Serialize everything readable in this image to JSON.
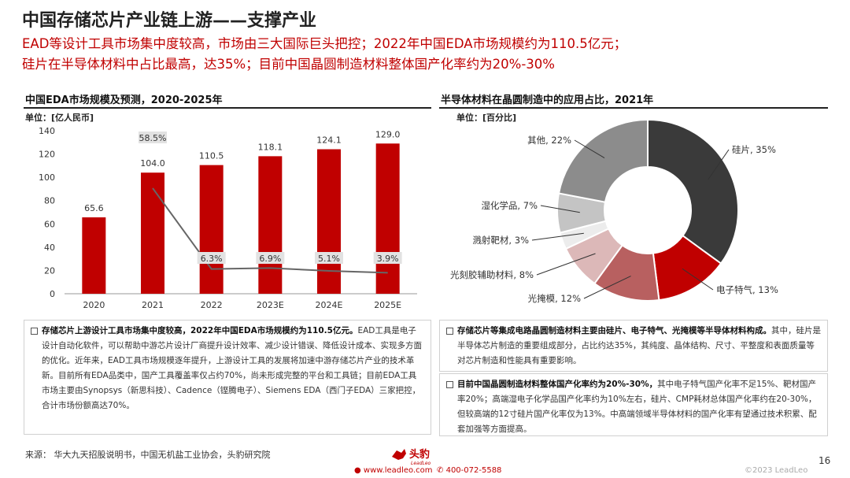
{
  "page": {
    "title": "中国存储芯片产业链上游——支撑产业",
    "subtitle_line1": "EAD等设计工具市场集中度较高，市场由三大国际巨头把控；2022年中国EDA市场规模约为110.5亿元；",
    "subtitle_line2": "硅片在半导体材料中占比最高，达35%；目前中国晶圆制造材料整体国产化率约为20%-30%",
    "page_number": "16",
    "source": "来源：  华大九天招股说明书，中国无机盐工业协会，头豹研究院",
    "footer_web": "www.leadleo.com",
    "footer_phone": "400-072-5588",
    "copyright": "©2023 LeadLeo",
    "logo_text": "头豹",
    "logo_sub": "LeadLeo",
    "accent_color": "#c00000"
  },
  "left_panel": {
    "header": "中国EDA市场规模及预测，2020-2025年",
    "unit": "单位：[亿人民币]",
    "box_bold": "存储芯片上游设计工具市场集中度较高，2022年中国EDA市场规模约为110.5亿元。",
    "box_text": "EAD工具是电子设计自动化软件，可以帮助中游芯片设计厂商提升设计效率、减少设计错误、降低设计成本、实现多方面的优化。近年来，EAD工具市场规模逐年提升，上游设计工具的发展将加速中游存储芯片产业的技术革新。目前所有EDA品类中，国产工具覆盖率仅占约70%，尚未形成完整的平台和工具链；目前EDA工具市场主要由Synopsys（新思科技）、Cadence（铿腾电子）、Siemens EDA（西门子EDA）三家把控，合计市场份额高达70%。"
  },
  "right_panel": {
    "header": "半导体材料在晶圆制造中的应用占比，2021年",
    "unit": "单位：[百分比]",
    "box1_bold": "存储芯片等集成电路晶圆制造材料主要由硅片、电子特气、光掩模等半导体材料构成。",
    "box1_text": "其中，硅片是半导体芯片制造的重要组成部分，占比约达35%，其纯度、晶体结构、尺寸、平整度和表面质量等对芯片制造和性能具有重要影响。",
    "box2_bold": "目前中国晶圆制造材料整体国产化率约为20%-30%，",
    "box2_text": "其中电子特气国产化率不足15%、靶材国产率20%；高端湿电子化学品国产化率约为10%左右，硅片、CMP耗材总体国产化率约在20-30%，但较高端的12寸硅片国产化率仅为13%。中高端领域半导体材料的国产化率有望通过技术积累、配套加强等方面提高。"
  },
  "chart_data": [
    {
      "type": "bar",
      "categories": [
        "2020",
        "2021",
        "2022",
        "2023E",
        "2024E",
        "2025E"
      ],
      "series": [
        {
          "values": [
            65.6,
            104.0,
            110.5,
            118.1,
            124.1,
            129.0
          ],
          "color": "#c00000"
        },
        {
          "values": [
            "",
            "58.5%",
            "6.3%",
            "6.9%",
            "5.1%",
            "3.9%"
          ],
          "color": "#666666"
        }
      ],
      "growth_values": [
        null,
        58.5,
        6.3,
        6.9,
        5.1,
        3.9
      ],
      "value_labels": [
        "65.6",
        "104.0",
        "110.5",
        "118.1",
        "124.1",
        "129.0"
      ],
      "yticks": [
        "0",
        "20",
        "40",
        "60",
        "80",
        "100",
        "120",
        "140"
      ],
      "ylim": [
        0,
        140
      ]
    },
    {
      "type": "pie",
      "slices": [
        {
          "label": "硅片, 35%",
          "value": 35,
          "color": "#3a3a3a"
        },
        {
          "label": "电子特气, 13%",
          "value": 13,
          "color": "#c00000"
        },
        {
          "label": "光掩模, 12%",
          "value": 12,
          "color": "#b86060"
        },
        {
          "label": "光刻胶辅助材料, 8%",
          "value": 8,
          "color": "#dcb8b8"
        },
        {
          "label": "溅射靶材, 3%",
          "value": 3,
          "color": "#ececec"
        },
        {
          "label": "湿化学品, 7%",
          "value": 7,
          "color": "#c4c4c4"
        },
        {
          "label": "其他, 22%",
          "value": 22,
          "color": "#8c8c8c"
        }
      ]
    }
  ]
}
